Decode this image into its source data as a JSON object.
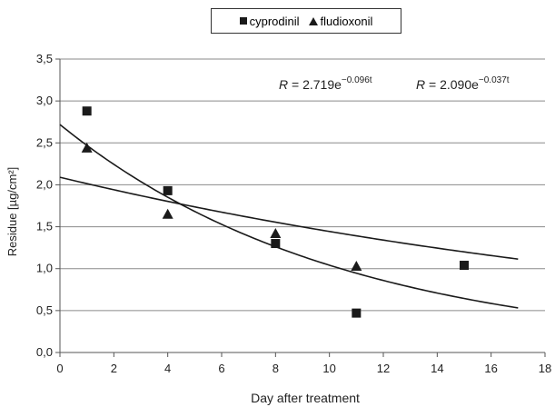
{
  "chart_data": {
    "type": "scatter",
    "xlabel": "Day after treatment",
    "ylabel": "Residue [µg/cm²]",
    "xlim": [
      0,
      18
    ],
    "ylim": [
      0,
      3.5
    ],
    "x_ticks": [
      0,
      2,
      4,
      6,
      8,
      10,
      12,
      14,
      16,
      18
    ],
    "y_ticks": [
      0,
      0.5,
      1.0,
      1.5,
      2.0,
      2.5,
      3.0,
      3.5
    ],
    "y_tick_labels": [
      "0,0",
      "0,5",
      "1,0",
      "1,5",
      "2,0",
      "2,5",
      "3,0",
      "3,5"
    ],
    "grid": "horizontal",
    "legend_position": "top-center",
    "series": [
      {
        "name": "cyprodinil",
        "marker": "square",
        "color": "#1a1a1a",
        "points": [
          [
            1,
            2.88
          ],
          [
            4,
            1.93
          ],
          [
            8,
            1.3
          ],
          [
            11,
            0.47
          ],
          [
            15,
            1.04
          ]
        ],
        "fit": {
          "a": 2.719,
          "b": 0.096,
          "x_range": [
            0,
            17
          ]
        }
      },
      {
        "name": "fludioxonil",
        "marker": "triangle",
        "color": "#1a1a1a",
        "points": [
          [
            1,
            2.44
          ],
          [
            4,
            1.65
          ],
          [
            8,
            1.42
          ],
          [
            11,
            1.03
          ]
        ],
        "fit": {
          "a": 2.09,
          "b": 0.037,
          "x_range": [
            0,
            17
          ]
        }
      }
    ],
    "annotations": [
      {
        "label": "R = 2.719e",
        "exponent": "−0.096t"
      },
      {
        "label": "R = 2.090e",
        "exponent": "−0.037t"
      }
    ]
  }
}
